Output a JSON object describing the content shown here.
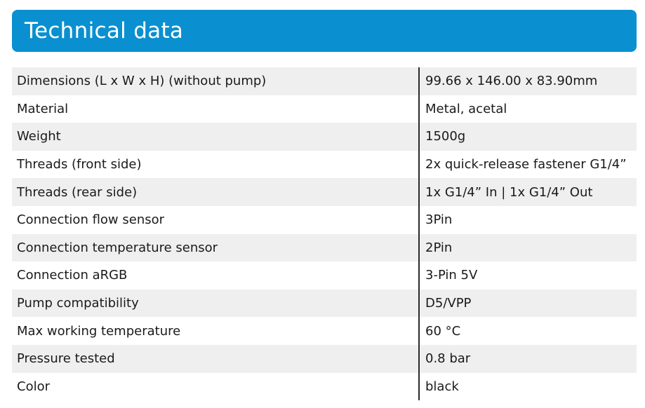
{
  "header": {
    "title": "Technical data",
    "color": "#0a90d0"
  },
  "specs": [
    {
      "label": "Dimensions (L x W x H) (without pump)",
      "value": "99.66 x 146.00 x 83.90mm"
    },
    {
      "label": "Material",
      "value": "Metal, acetal"
    },
    {
      "label": "Weight",
      "value": "1500g"
    },
    {
      "label": "Threads (front side)",
      "value": "2x quick-release fastener G1/4”"
    },
    {
      "label": "Threads (rear side)",
      "value": "1x G1/4” In | 1x G1/4” Out"
    },
    {
      "label": "Connection flow sensor",
      "value": "3Pin"
    },
    {
      "label": "Connection temperature sensor",
      "value": "2Pin"
    },
    {
      "label": "Connection aRGB",
      "value": "3-Pin 5V"
    },
    {
      "label": "Pump compatibility",
      "value": "D5/VPP"
    },
    {
      "label": "Max working temperature",
      "value": "60 °C"
    },
    {
      "label": "Pressure tested",
      "value": "0.8 bar"
    },
    {
      "label": "Color",
      "value": "black"
    }
  ]
}
